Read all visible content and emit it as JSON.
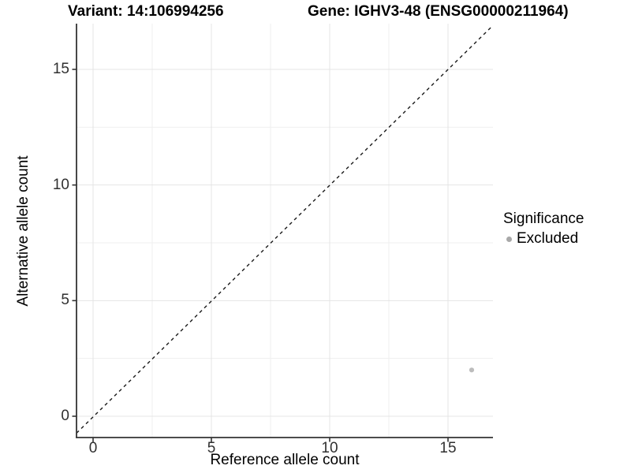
{
  "chart_data": {
    "type": "scatter",
    "title_parts": {
      "variant": "Variant: 14:106994256",
      "gene": "Gene: IGHV3-48 (ENSG00000211964)"
    },
    "xlabel": "Reference allele count",
    "ylabel": "Alternative allele count",
    "xlim": [
      -0.8,
      16.9
    ],
    "ylim": [
      -0.9,
      17.0
    ],
    "x_ticks": [
      0,
      5,
      10,
      15
    ],
    "y_ticks": [
      0,
      5,
      10,
      15
    ],
    "x_minor_ticks": [
      2.5,
      7.5,
      12.5
    ],
    "y_minor_ticks": [
      2.5,
      7.5,
      12.5
    ],
    "grid": "major and minor gridlines, light gray on white panel",
    "reference_line": {
      "equation": "y = x",
      "style": "dashed",
      "color": "#1a1a1a",
      "from": [
        -0.73,
        -0.73
      ],
      "to": [
        16.9,
        16.9
      ]
    },
    "series": [
      {
        "name": "Excluded",
        "marker": "circle",
        "color": "#bcbcbc",
        "points": [
          [
            16,
            2
          ]
        ]
      }
    ],
    "legend": {
      "title": "Significance",
      "position": "right",
      "items": [
        {
          "label": "Excluded",
          "color": "#a8a8a8",
          "marker": "circle"
        }
      ]
    },
    "colors": {
      "axis_line": "#333333",
      "tick_label": "#303030",
      "grid_major": "#e4e4e4",
      "grid_minor": "#efefef",
      "panel_background": "#ffffff"
    }
  }
}
